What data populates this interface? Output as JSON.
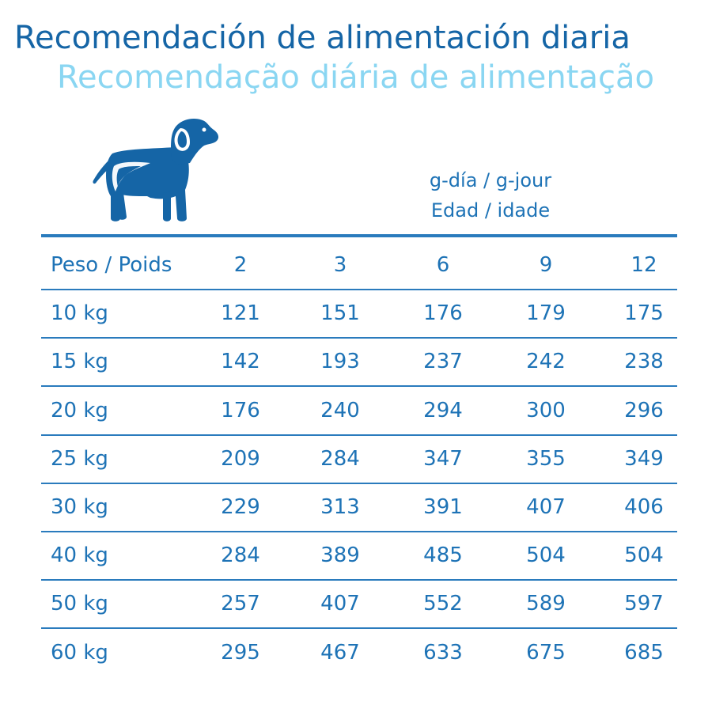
{
  "title": {
    "es": "Recomendación de alimentación diaria",
    "pt": "Recomendação diária de alimentação"
  },
  "dog_icon": "dog-icon",
  "units": {
    "line1": "g-día / g-jour",
    "line2": "Edad / idade"
  },
  "table": {
    "header_label": "Peso / Poids",
    "ages": [
      "2",
      "3",
      "6",
      "9",
      "12"
    ],
    "rows": [
      {
        "weight": "10 kg",
        "values": [
          "121",
          "151",
          "176",
          "179",
          "175"
        ]
      },
      {
        "weight": "15 kg",
        "values": [
          "142",
          "193",
          "237",
          "242",
          "238"
        ]
      },
      {
        "weight": "20 kg",
        "values": [
          "176",
          "240",
          "294",
          "300",
          "296"
        ]
      },
      {
        "weight": "25 kg",
        "values": [
          "209",
          "284",
          "347",
          "355",
          "349"
        ]
      },
      {
        "weight": "30 kg",
        "values": [
          "229",
          "313",
          "391",
          "407",
          "406"
        ]
      },
      {
        "weight": "40 kg",
        "values": [
          "284",
          "389",
          "485",
          "504",
          "504"
        ]
      },
      {
        "weight": "50 kg",
        "values": [
          "257",
          "407",
          "552",
          "589",
          "597"
        ]
      },
      {
        "weight": "60 kg",
        "values": [
          "295",
          "467",
          "633",
          "675",
          "685"
        ]
      }
    ]
  },
  "colors": {
    "primary": "#1565a6",
    "secondary": "#8ad6f2",
    "text": "#1e73b6",
    "rule": "#2a7bbd"
  }
}
